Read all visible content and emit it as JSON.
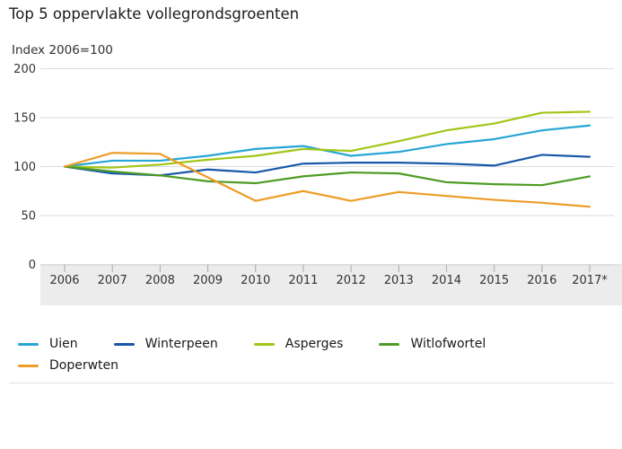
{
  "chart_data": {
    "type": "line",
    "title": "Top 5 oppervlakte vollegrondsgroenten",
    "subtitle": "Index 2006=100",
    "categories": [
      "2006",
      "2007",
      "2008",
      "2009",
      "2010",
      "2011",
      "2012",
      "2013",
      "2014",
      "2015",
      "2016",
      "2017*"
    ],
    "xlabel": "",
    "ylabel": "Index 2006=100",
    "ylim": [
      0,
      200
    ],
    "yticks": [
      0,
      50,
      100,
      150,
      200
    ],
    "grid": true,
    "legend_position": "bottom",
    "series": [
      {
        "name": "Uien",
        "color": "#27A6D6",
        "values": [
          100,
          106,
          106,
          111,
          118,
          121,
          111,
          115,
          123,
          128,
          137,
          142
        ]
      },
      {
        "name": "Winterpeen",
        "color": "#1858A8",
        "values": [
          100,
          93,
          91,
          97,
          94,
          103,
          104,
          104,
          103,
          101,
          112,
          110
        ]
      },
      {
        "name": "Asperges",
        "color": "#A2C617",
        "values": [
          100,
          99,
          102,
          107,
          111,
          118,
          116,
          126,
          137,
          144,
          155,
          156
        ]
      },
      {
        "name": "Witlofwortel",
        "color": "#4E9C23",
        "values": [
          100,
          95,
          91,
          85,
          83,
          90,
          94,
          93,
          84,
          82,
          81,
          90
        ]
      },
      {
        "name": "Doperwten",
        "color": "#EC9D26",
        "values": [
          100,
          114,
          113,
          89,
          65,
          75,
          65,
          74,
          70,
          66,
          63,
          59
        ]
      }
    ]
  },
  "colors": {
    "gridline": "#dbdbdb",
    "axis_band": "#ececec",
    "band_border": "#d2d2d2",
    "tick": "#a9a9a9",
    "axis_text": "#333333",
    "background": "#ffffff"
  }
}
